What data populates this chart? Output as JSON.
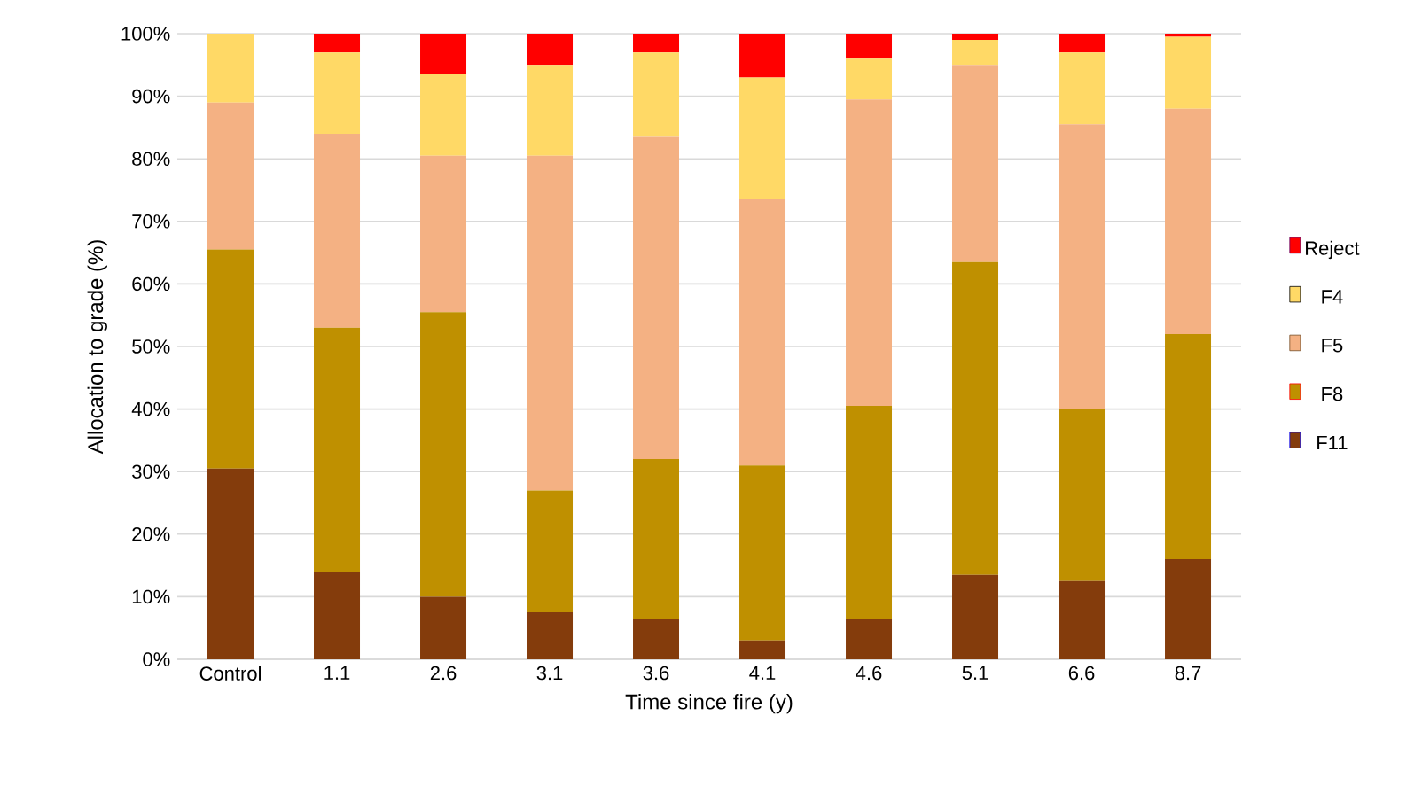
{
  "chart_data": {
    "type": "bar",
    "stacked": true,
    "xlabel": "Time since fire (y)",
    "ylabel": "Allocation to grade (%)",
    "categories": [
      "Control",
      "1.1",
      "2.6",
      "3.1",
      "3.6",
      "4.1",
      "4.6",
      "5.1",
      "6.6",
      "8.7"
    ],
    "series": [
      {
        "name": "F11",
        "color": "#843c0c",
        "values": [
          30.5,
          14,
          10,
          7.5,
          6.5,
          3,
          6.5,
          13.5,
          12.5,
          16
        ]
      },
      {
        "name": "F8",
        "color": "#bf9000",
        "values": [
          35,
          39,
          45.5,
          19.5,
          25.5,
          28,
          34,
          50,
          27.5,
          36
        ]
      },
      {
        "name": "F5",
        "color": "#f4b183",
        "values": [
          23.5,
          31,
          25,
          53.5,
          51.5,
          42.5,
          49,
          31.5,
          45.5,
          36
        ]
      },
      {
        "name": "F4",
        "color": "#ffd966",
        "values": [
          11,
          13,
          13,
          14.5,
          13.5,
          19.5,
          6.5,
          4,
          11.5,
          11.5
        ]
      },
      {
        "name": "Reject",
        "color": "#ff0000",
        "values": [
          0,
          3,
          6.5,
          5,
          3,
          7,
          4,
          1,
          3,
          0.5
        ]
      }
    ],
    "ylim": [
      0,
      100
    ],
    "yticks": [
      {
        "value": 0,
        "label": "0%"
      },
      {
        "value": 10,
        "label": "10%"
      },
      {
        "value": 20,
        "label": "20%"
      },
      {
        "value": 30,
        "label": "30%"
      },
      {
        "value": 40,
        "label": "40%"
      },
      {
        "value": 50,
        "label": "50%"
      },
      {
        "value": 60,
        "label": "60%"
      },
      {
        "value": 70,
        "label": "70%"
      },
      {
        "value": 80,
        "label": "80%"
      },
      {
        "value": 90,
        "label": "90%"
      },
      {
        "value": 100,
        "label": "100%"
      }
    ],
    "grid": "y",
    "legend": "right"
  }
}
